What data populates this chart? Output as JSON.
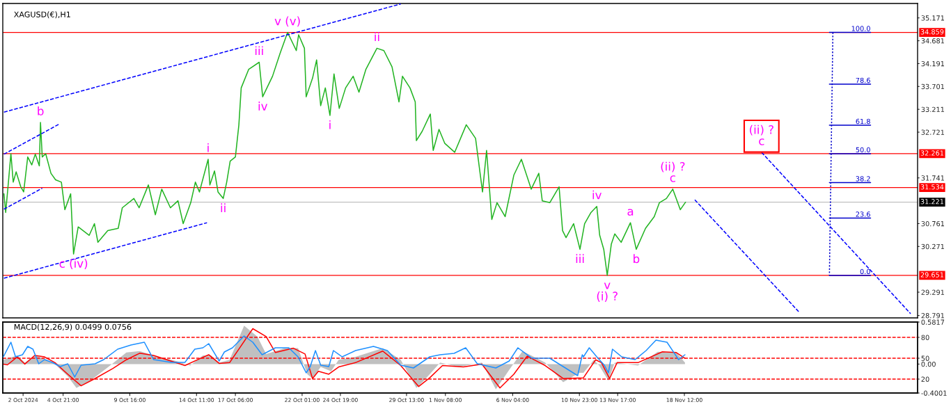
{
  "chart_data": [
    {
      "type": "line",
      "title": "XAGUSD(€),H1",
      "xlim": [
        "2024-09-30T13:00",
        "2024-12-05T06:00"
      ],
      "ylim": [
        28.74,
        35.48
      ],
      "yticks": [
        35.171,
        34.681,
        34.191,
        33.701,
        33.211,
        32.721,
        31.741,
        30.761,
        30.271,
        29.291,
        28.791
      ],
      "tick_labels": "y",
      "series": [
        {
          "color": "#22b422",
          "x": [
            "2024-09-30T15:00",
            "2024-09-30T18:00",
            "2024-09-30T22:00",
            "2024-10-01T03:00",
            "2024-10-01T07:00",
            "2024-10-01T12:00",
            "2024-10-01T20:00",
            "2024-10-02T01:00",
            "2024-10-02T08:00",
            "2024-10-02T15:00",
            "2024-10-02T21:00",
            "2024-10-03T04:00",
            "2024-10-03T06:00",
            "2024-10-03T09:00",
            "2024-10-03T15:00",
            "2024-10-04T00:00",
            "2024-10-04T08:00",
            "2024-10-04T18:00",
            "2024-10-05T00:00",
            "2024-10-05T10:00",
            "2024-10-05T15:00",
            "2024-10-05T23:00",
            "2024-10-06T18:00",
            "2024-10-07T03:00",
            "2024-10-07T09:00",
            "2024-10-08T02:00",
            "2024-10-08T20:00",
            "2024-10-09T03:00",
            "2024-10-09T23:00",
            "2024-10-10T08:00",
            "2024-10-11T00:00",
            "2024-10-11T12:00",
            "2024-10-11T23:00",
            "2024-10-12T14:00",
            "2024-10-13T03:00",
            "2024-10-13T12:00",
            "2024-10-14T01:00",
            "2024-10-14T09:00",
            "2024-10-14T16:00",
            "2024-10-15T07:00",
            "2024-10-15T10:00",
            "2024-10-15T18:00",
            "2024-10-16T00:00",
            "2024-10-16T09:00",
            "2024-10-16T15:00",
            "2024-10-16T21:00",
            "2024-10-17T06:00",
            "2024-10-17T12:00",
            "2024-10-17T16:00",
            "2024-10-18T05:00",
            "2024-10-18T23:00",
            "2024-10-19T05:00",
            "2024-10-19T22:00",
            "2024-10-20T11:00",
            "2024-10-21T00:00",
            "2024-10-21T15:00",
            "2024-10-21T19:00",
            "2024-10-22T05:00",
            "2024-10-22T08:00",
            "2024-10-22T19:00",
            "2024-10-23T02:00",
            "2024-10-23T09:00",
            "2024-10-23T17:00",
            "2024-10-24T01:00",
            "2024-10-24T08:00",
            "2024-10-24T17:00",
            "2024-10-25T04:00",
            "2024-10-25T17:00",
            "2024-10-26T03:00",
            "2024-10-26T15:00",
            "2024-10-27T10:00",
            "2024-10-27T22:00",
            "2024-10-28T12:00",
            "2024-10-29T00:00",
            "2024-10-29T06:00",
            "2024-10-29T19:00",
            "2024-10-30T04:00",
            "2024-10-30T06:00",
            "2024-10-30T16:00",
            "2024-10-31T06:00",
            "2024-10-31T11:00",
            "2024-10-31T21:00",
            "2024-11-01T07:00",
            "2024-11-02T00:00",
            "2024-11-02T20:00",
            "2024-11-03T12:00",
            "2024-11-04T00:00",
            "2024-11-04T07:00",
            "2024-11-04T16:00",
            "2024-11-05T01:00",
            "2024-11-05T15:00",
            "2024-11-06T06:00",
            "2024-11-06T19:00",
            "2024-11-07T12:00",
            "2024-11-08T01:00",
            "2024-11-08T07:00",
            "2024-11-08T20:00",
            "2024-11-09T12:00",
            "2024-11-09T18:00",
            "2024-11-10T00:00",
            "2024-11-10T13:00",
            "2024-11-11T00:00",
            "2024-11-11T08:00",
            "2024-11-11T19:00",
            "2024-11-12T05:00",
            "2024-11-12T10:00",
            "2024-11-12T17:00",
            "2024-11-12T23:00",
            "2024-11-13T06:00",
            "2024-11-13T12:00",
            "2024-11-13T23:00",
            "2024-11-14T15:00",
            "2024-11-15T01:00",
            "2024-11-15T17:00",
            "2024-11-16T08:00",
            "2024-11-16T17:00",
            "2024-11-17T05:00",
            "2024-11-17T16:00",
            "2024-11-18T05:00",
            "2024-11-18T14:00"
          ],
          "values": [
            31.4,
            31.0,
            31.55,
            32.26,
            31.65,
            31.87,
            31.55,
            31.44,
            32.19,
            32.02,
            32.25,
            32.0,
            32.93,
            32.19,
            32.26,
            31.84,
            31.7,
            31.65,
            31.06,
            31.4,
            30.11,
            30.69,
            30.51,
            30.76,
            30.36,
            30.61,
            30.66,
            31.1,
            31.3,
            31.1,
            31.59,
            30.95,
            31.5,
            31.1,
            31.25,
            30.76,
            31.21,
            31.65,
            31.44,
            32.14,
            31.59,
            31.89,
            31.44,
            31.3,
            31.65,
            32.1,
            32.19,
            32.88,
            33.67,
            34.07,
            34.22,
            33.48,
            33.92,
            34.41,
            34.86,
            34.47,
            34.81,
            34.52,
            33.48,
            33.88,
            34.27,
            33.29,
            33.67,
            33.08,
            33.97,
            33.23,
            33.67,
            33.92,
            33.58,
            34.07,
            34.52,
            34.47,
            34.12,
            33.37,
            33.92,
            33.67,
            33.37,
            32.54,
            32.74,
            33.11,
            32.33,
            32.78,
            32.48,
            32.29,
            32.88,
            32.59,
            31.44,
            32.33,
            30.85,
            31.21,
            30.91,
            31.8,
            32.14,
            31.5,
            31.84,
            31.25,
            31.21,
            31.55,
            30.61,
            30.46,
            30.76,
            30.21,
            30.76,
            31.0,
            31.13,
            30.51,
            30.21,
            29.65,
            30.32,
            30.54,
            30.36,
            30.78,
            30.21,
            30.66,
            30.91,
            31.21,
            31.3,
            31.5,
            31.06,
            31.22
          ]
        },
        {
          "color": "#0000ff",
          "line_style": "dashed",
          "x": [
            "2024-09-30T15:00",
            "2024-10-29T03:00"
          ],
          "values": [
            33.15,
            35.47
          ]
        },
        {
          "color": "#0000ff",
          "line_style": "dashed",
          "x": [
            "2024-09-30T15:00",
            "2024-10-15T05:00"
          ],
          "values": [
            29.59,
            30.78
          ]
        },
        {
          "color": "#0000ff",
          "line_style": "dashed",
          "x": [
            "2024-09-30T15:00",
            "2024-10-04T15:00"
          ],
          "values": [
            32.25,
            32.9
          ]
        },
        {
          "color": "#0000ff",
          "line_style": "dashed",
          "x": [
            "2024-09-30T15:00",
            "2024-10-03T09:00"
          ],
          "values": [
            31.07,
            31.52
          ]
        },
        {
          "color": "#0000ff",
          "line_style": "dashed",
          "x": [
            "2024-11-19T06:00",
            "2024-11-26T18:00"
          ],
          "values": [
            31.27,
            28.86
          ]
        },
        {
          "color": "#0000ff",
          "line_style": "dashed",
          "x": [
            "2024-11-24T01:00",
            "2024-12-04T18:00"
          ],
          "values": [
            32.29,
            28.83
          ]
        },
        {
          "color": "#0000cc",
          "line_style": "dotted",
          "x": [
            "2024-11-29T04:00",
            "2024-11-28T22:00"
          ],
          "values": [
            34.86,
            29.65
          ]
        },
        {
          "name": "100.0",
          "color": "#0000cc",
          "x": [
            "2024-11-28T22:00",
            "2024-12-01T21:00"
          ],
          "values": [
            34.86,
            34.86
          ]
        },
        {
          "name": "78.6",
          "color": "#0000cc",
          "x": [
            "2024-11-28T22:00",
            "2024-12-01T21:00"
          ],
          "values": [
            33.75,
            33.75
          ]
        },
        {
          "name": "61.8",
          "color": "#0000cc",
          "x": [
            "2024-11-28T22:00",
            "2024-12-01T21:00"
          ],
          "values": [
            32.87,
            32.87
          ]
        },
        {
          "name": "50.0",
          "color": "#0000cc",
          "x": [
            "2024-11-28T22:00",
            "2024-12-01T21:00"
          ],
          "values": [
            32.26,
            32.26
          ]
        },
        {
          "name": "38.2",
          "color": "#0000cc",
          "x": [
            "2024-11-28T22:00",
            "2024-12-01T21:00"
          ],
          "values": [
            31.64,
            31.64
          ]
        },
        {
          "name": "23.6",
          "color": "#0000cc",
          "x": [
            "2024-11-28T22:00",
            "2024-12-01T21:00"
          ],
          "values": [
            30.88,
            30.88
          ]
        },
        {
          "name": "0.0",
          "color": "#0000cc",
          "x": [
            "2024-11-28T22:00",
            "2024-12-01T21:00"
          ],
          "values": [
            29.65,
            29.65
          ]
        }
      ],
      "ref_lines": [
        {
          "axis": "y",
          "value": 34.859,
          "label": "34.859",
          "color": "#ff0000"
        },
        {
          "axis": "y",
          "value": 32.261,
          "label": "32.261",
          "color": "#ff0000"
        },
        {
          "axis": "y",
          "value": 31.534,
          "label": "31.534",
          "color": "#ff0000"
        },
        {
          "axis": "y",
          "value": 31.221,
          "label": "31.221",
          "color": "#c0c0c0"
        },
        {
          "axis": "y",
          "value": 29.651,
          "label": "29.651",
          "color": "#ff0000"
        }
      ],
      "annotations": [
        {
          "text": "v (v)",
          "x": "2024-10-21T00:00",
          "y": 34.86
        },
        {
          "text": "iii",
          "x": "2024-10-18T23:00",
          "y": 34.22
        },
        {
          "text": "iv",
          "x": "2024-10-19T05:00",
          "y": 33.48
        },
        {
          "text": "ii",
          "x": "2024-10-27T10:00",
          "y": 34.52
        },
        {
          "text": "i",
          "x": "2024-10-24T01:00",
          "y": 33.08
        },
        {
          "text": "b",
          "x": "2024-10-03T06:00",
          "y": 32.93
        },
        {
          "text": "i",
          "x": "2024-10-15T07:00",
          "y": 32.14
        },
        {
          "text": "ii",
          "x": "2024-10-16T09:00",
          "y": 31.3
        },
        {
          "text": "c (iv)",
          "x": "2024-10-05T15:00",
          "y": 30.11
        },
        {
          "text": "iii",
          "x": "2024-11-11T00:00",
          "y": 30.21
        },
        {
          "text": "iv",
          "x": "2024-11-12T05:00",
          "y": 31.13
        },
        {
          "text": "a",
          "x": "2024-11-14T15:00",
          "y": 30.78
        },
        {
          "text": "b",
          "x": "2024-11-15T01:00",
          "y": 30.21
        },
        {
          "text": "v\n(i) ?",
          "x": "2024-11-12T23:00",
          "y": 29.65
        },
        {
          "text": "(ii) ?\nc",
          "x": "2024-11-17T16:00",
          "y": 31.5
        },
        {
          "text": "(ii) ?\nc",
          "x": "2024-11-24T01:00",
          "y": 32.29
        }
      ]
    },
    {
      "type": "line",
      "title": "MACD(12,26,9) 0.0499 0.0756",
      "xlim": [
        "2024-09-30T13:00",
        "2024-12-05T06:00"
      ],
      "xticks": [
        {
          "value": "2024-10-02",
          "label": "2 Oct 2024"
        },
        {
          "value": "2024-10-04T21:00",
          "label": "4 Oct 21:00"
        },
        {
          "value": "2024-10-09T16:00",
          "label": "9 Oct 16:00"
        },
        {
          "value": "2024-10-14T11:00",
          "label": "14 Oct 11:00"
        },
        {
          "value": "2024-10-17T06:00",
          "label": "17 Oct 06:00"
        },
        {
          "value": "2024-10-22T01:00",
          "label": "22 Oct 01:00"
        },
        {
          "value": "2024-10-24T19:00",
          "label": "24 Oct 19:00"
        },
        {
          "value": "2024-10-29T13:00",
          "label": "29 Oct 13:00"
        },
        {
          "value": "2024-11-01T08:00",
          "label": "1 Nov 08:00"
        },
        {
          "value": "2024-11-06T04:00",
          "label": "6 Nov 04:00"
        },
        {
          "value": "2024-11-10T23:00",
          "label": "10 Nov 23:00"
        },
        {
          "value": "2024-11-13T17:00",
          "label": "13 Nov 17:00"
        },
        {
          "value": "2024-11-18T12:00",
          "label": "18 Nov 12:00"
        }
      ],
      "ylim": [
        -0.4001,
        0.5817
      ],
      "yticks": [
        0.5817,
        {
          "value": 0,
          "label": "0.00"
        },
        -0.4001
      ],
      "y2lim": [
        0,
        102
      ],
      "y2ticks": [
        80,
        50,
        20
      ],
      "series": [
        {
          "type": "area",
          "color": "#c0c0c0",
          "x": [
            "2024-09-30T14:00",
            "2024-10-01T14:00",
            "2024-10-02T03:00",
            "2024-10-02T22:00",
            "2024-10-03T17:00",
            "2024-10-04T07:00",
            "2024-10-05T05:00",
            "2024-10-05T20:00",
            "2024-10-06T20:00",
            "2024-10-08T03:00",
            "2024-10-09T10:00",
            "2024-10-10T09:00",
            "2024-10-11T17:00",
            "2024-10-13T01:00",
            "2024-10-14T00:00",
            "2024-10-14T22:00",
            "2024-10-15T12:00",
            "2024-10-16T02:00",
            "2024-10-16T20:00",
            "2024-10-17T21:00",
            "2024-10-18T20:00",
            "2024-10-19T11:00",
            "2024-10-20T19:00",
            "2024-10-21T18:00",
            "2024-10-22T10:00",
            "2024-10-22T19:00",
            "2024-10-23T09:00",
            "2024-10-24T03:00",
            "2024-10-24T16:00",
            "2024-10-25T21:00",
            "2024-10-27T20:00",
            "2024-10-29T03:00",
            "2024-10-30T06:00",
            "2024-10-30T19:00",
            "2024-10-31T23:00",
            "2024-11-02T07:00",
            "2024-11-03T23:00",
            "2024-11-04T23:00",
            "2024-11-05T22:00",
            "2024-11-06T21:00",
            "2024-11-08T12:00",
            "2024-11-09T19:00",
            "2024-11-10T23:00",
            "2024-11-11T06:00",
            "2024-11-12T00:00",
            "2024-11-12T09:00",
            "2024-11-13T01:00",
            "2024-11-13T12:00",
            "2024-11-15T04:00",
            "2024-11-16T14:00",
            "2024-11-17T22:00",
            "2024-11-18T13:00"
          ],
          "values": [
            0.06,
            0.12,
            0.02,
            0.12,
            0.06,
            0.0,
            -0.17,
            -0.33,
            -0.23,
            -0.04,
            0.16,
            0.18,
            0.1,
            0.04,
            -0.02,
            0.12,
            0.12,
            0.02,
            0.06,
            0.53,
            0.38,
            0.14,
            0.22,
            0.22,
            -0.14,
            -0.2,
            -0.04,
            -0.1,
            0.06,
            0.1,
            0.22,
            0.06,
            -0.33,
            -0.23,
            0.02,
            -0.04,
            0.02,
            -0.35,
            -0.08,
            0.18,
            0.02,
            -0.25,
            -0.12,
            -0.12,
            0.06,
            -0.02,
            -0.23,
            0.02,
            -0.02,
            0.17,
            0.16,
            0.02
          ]
        },
        {
          "color": "#ff0000",
          "x": [
            "2024-09-30T14:00",
            "2024-09-30T21:00",
            "2024-10-01T14:00",
            "2024-10-02T03:00",
            "2024-10-02T20:00",
            "2024-10-03T13:00",
            "2024-10-04T07:00",
            "2024-10-05T05:00",
            "2024-10-06T04:00",
            "2024-10-07T04:00",
            "2024-10-08T11:00",
            "2024-10-09T10:00",
            "2024-10-10T09:00",
            "2024-10-11T09:00",
            "2024-10-12T08:00",
            "2024-10-13T15:00",
            "2024-10-14T18:00",
            "2024-10-15T08:00",
            "2024-10-16T02:00",
            "2024-10-16T20:00",
            "2024-10-17T13:00",
            "2024-10-18T12:00",
            "2024-10-19T11:00",
            "2024-10-20T03:00",
            "2024-10-21T10:00",
            "2024-10-22T06:00",
            "2024-10-22T19:00",
            "2024-10-23T05:00",
            "2024-10-23T23:00",
            "2024-10-24T16:00",
            "2024-10-25T21:00",
            "2024-10-27T20:00",
            "2024-10-29T03:00",
            "2024-10-30T10:00",
            "2024-10-31T05:00",
            "2024-11-01T03:00",
            "2024-11-02T15:00",
            "2024-11-03T23:00",
            "2024-11-05T06:00",
            "2024-11-06T06:00",
            "2024-11-07T05:00",
            "2024-11-08T12:00",
            "2024-11-09T19:00",
            "2024-11-11T06:00",
            "2024-11-12T03:00",
            "2024-11-12T13:00",
            "2024-11-13T03:00",
            "2024-11-13T16:00",
            "2024-11-15T04:00",
            "2024-11-16T22:00",
            "2024-11-17T22:00",
            "2024-11-18T13:00"
          ],
          "values": [
            0.0,
            -0.01,
            0.1,
            0.0,
            0.12,
            0.1,
            0.02,
            -0.14,
            -0.3,
            -0.2,
            -0.06,
            0.06,
            0.15,
            0.12,
            0.06,
            -0.02,
            0.08,
            0.13,
            0.01,
            0.02,
            0.22,
            0.49,
            0.38,
            0.16,
            0.22,
            0.14,
            -0.2,
            -0.1,
            -0.14,
            -0.04,
            0.02,
            0.18,
            -0.02,
            -0.31,
            -0.19,
            -0.02,
            -0.04,
            0.0,
            -0.33,
            -0.14,
            0.11,
            -0.02,
            -0.2,
            -0.19,
            0.06,
            0.02,
            -0.2,
            0.02,
            0.02,
            0.17,
            0.16,
            0.08
          ]
        },
        {
          "color": "#1e90ff",
          "axis": "y2",
          "x": [
            "2024-09-30T14:00",
            "2024-10-01T03:00",
            "2024-10-01T11:00",
            "2024-10-01T23:00",
            "2024-10-02T08:00",
            "2024-10-02T17:00",
            "2024-10-03T03:00",
            "2024-10-03T13:00",
            "2024-10-04T02:00",
            "2024-10-04T16:00",
            "2024-10-05T05:00",
            "2024-10-05T17:00",
            "2024-10-06T04:00",
            "2024-10-07T04:00",
            "2024-10-07T19:00",
            "2024-10-08T19:00",
            "2024-10-09T18:00",
            "2024-10-10T17:00",
            "2024-10-11T09:00",
            "2024-10-12T16:00",
            "2024-10-13T15:00",
            "2024-10-14T08:00",
            "2024-10-14T22:00",
            "2024-10-15T08:00",
            "2024-10-16T02:00",
            "2024-10-16T11:00",
            "2024-10-17T01:00",
            "2024-10-17T21:00",
            "2024-10-18T12:00",
            "2024-10-19T04:00",
            "2024-10-20T03:00",
            "2024-10-21T02:00",
            "2024-10-21T18:00",
            "2024-10-22T08:00",
            "2024-10-22T15:00",
            "2024-10-23T00:00",
            "2024-10-23T09:00",
            "2024-10-23T23:00",
            "2024-10-24T07:00",
            "2024-10-24T22:00",
            "2024-10-25T21:00",
            "2024-10-27T04:00",
            "2024-10-28T04:00",
            "2024-10-29T03:00",
            "2024-10-30T01:00",
            "2024-10-30T15:00",
            "2024-10-31T05:00",
            "2024-10-31T23:00",
            "2024-11-01T23:00",
            "2024-11-02T19:00",
            "2024-11-03T15:00",
            "2024-11-04T23:00",
            "2024-11-05T22:00",
            "2024-11-06T13:00",
            "2024-11-07T13:00",
            "2024-11-08T20:00",
            "2024-11-09T19:00",
            "2024-11-10T20:00",
            "2024-11-11T04:00",
            "2024-11-11T06:00",
            "2024-11-11T16:00",
            "2024-11-12T05:00",
            "2024-11-12T18:00",
            "2024-11-13T01:00",
            "2024-11-13T08:00",
            "2024-11-14T00:00",
            "2024-11-14T23:00",
            "2024-11-15T18:00",
            "2024-11-16T11:00",
            "2024-11-17T06:00",
            "2024-11-18T02:00",
            "2024-11-18T13:00"
          ],
          "values": [
            52,
            73,
            52,
            55,
            67,
            63,
            42,
            48,
            44,
            38,
            42,
            23,
            40,
            42,
            48,
            63,
            69,
            73,
            48,
            44,
            44,
            63,
            65,
            71,
            46,
            59,
            65,
            82,
            73,
            55,
            65,
            65,
            52,
            29,
            38,
            61,
            40,
            38,
            61,
            52,
            61,
            67,
            61,
            40,
            36,
            44,
            52,
            55,
            57,
            65,
            42,
            36,
            46,
            65,
            50,
            50,
            38,
            25,
            55,
            52,
            65,
            52,
            40,
            29,
            63,
            52,
            48,
            61,
            76,
            73,
            48,
            55
          ]
        }
      ],
      "ref_lines": [
        {
          "axis": "y2",
          "value": 80,
          "color": "#ff0000",
          "line_style": "dashed"
        },
        {
          "axis": "y2",
          "value": 50,
          "color": "#ff0000",
          "line_style": "dashed"
        },
        {
          "axis": "y2",
          "value": 20,
          "color": "#ff0000",
          "line_style": "dashed"
        }
      ]
    }
  ]
}
